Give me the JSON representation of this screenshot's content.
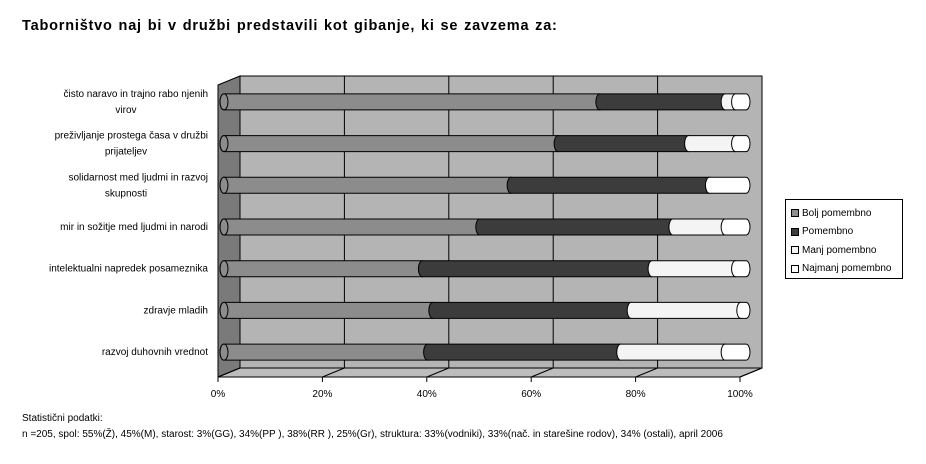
{
  "title": "Taborništvo naj bi v družbi predstavili kot gibanje, ki se zavzema za:",
  "chart_data": {
    "type": "bar",
    "orientation": "horizontal",
    "stacked": "percent",
    "three_d": true,
    "categories": [
      "čisto naravo in trajno rabo njenih virov",
      "preživljanje prostega časa v družbi prijateljev",
      "solidarnost med ljudmi in razvoj skupnosti",
      "mir in sožitje med ljudmi in narodi",
      "intelektualni napredek posameznika",
      "zdravje mladih",
      "razvoj duhovnih vrednot"
    ],
    "series": [
      {
        "name": "Bolj pomembno",
        "color": "#8c8c8c",
        "values": [
          72,
          64,
          55,
          49,
          38,
          40,
          39
        ]
      },
      {
        "name": "Pomembno",
        "color": "#3c3c3c",
        "values": [
          24,
          25,
          38,
          37,
          44,
          38,
          37
        ]
      },
      {
        "name": "Manj pomembno",
        "color": "#f4f4f4",
        "values": [
          2,
          9,
          0,
          10,
          16,
          21,
          20
        ]
      },
      {
        "name": "Najmanj pomembno",
        "color": "#ffffff",
        "values": [
          2,
          2,
          7,
          4,
          2,
          1,
          4
        ]
      }
    ],
    "xlim": [
      0,
      100
    ],
    "x_ticks": [
      "0%",
      "20%",
      "40%",
      "60%",
      "80%",
      "100%"
    ],
    "grid": true,
    "legend": "right"
  },
  "legend_items": [
    {
      "label": "Bolj pomembno",
      "color": "#8c8c8c"
    },
    {
      "label": "Pomembno",
      "color": "#3c3c3c"
    },
    {
      "label": "Manj pomembno",
      "color": "#f4f4f4"
    },
    {
      "label": "Najmanj pomembno",
      "color": "#ffffff"
    }
  ],
  "footer": {
    "line1": "Statistični podatki:",
    "line2": "n =205, spol: 55%(Ž), 45%(M), starost: 3%(GG), 34%(PP ), 38%(RR ), 25%(Gr), struktura: 33%(vodniki), 33%(nač. in starešine rodov), 34% (ostali), april 2006"
  }
}
